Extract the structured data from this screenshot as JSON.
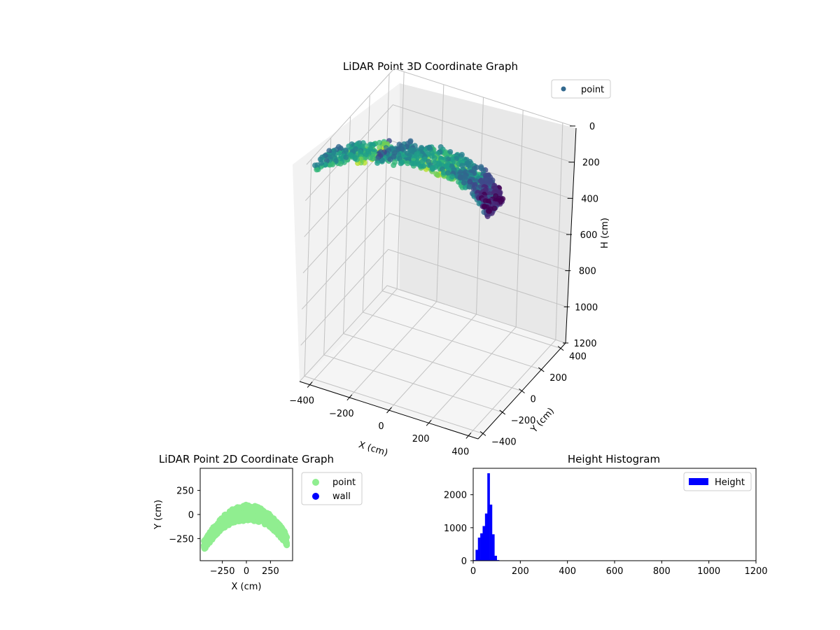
{
  "figure": {
    "colors": {
      "point_3d_legend": "#31688e",
      "point_2d": "#90ee90",
      "wall": "#0000ff",
      "hist": "#0000ff"
    }
  },
  "chart_data": [
    {
      "type": "scatter3d",
      "title": "LiDAR Point 3D Coordinate Graph",
      "xlabel": "X (cm)",
      "ylabel": "Y (cm)",
      "zlabel": "H (cm)",
      "x_ticks": [
        "−400",
        "−200",
        "0",
        "200",
        "400"
      ],
      "y_ticks": [
        "−400",
        "−200",
        "0",
        "200",
        "400"
      ],
      "z_ticks": [
        "0",
        "200",
        "400",
        "600",
        "800",
        "1000",
        "1200"
      ],
      "xlim": [
        -450,
        450
      ],
      "ylim": [
        -450,
        450
      ],
      "zlim": [
        0,
        1200
      ],
      "z_inverted": true,
      "colormap": "viridis",
      "legend": {
        "labels": [
          "point"
        ],
        "position": "top-right"
      },
      "series": [
        {
          "name": "point",
          "description_shape": "arched band of points",
          "x_range": [
            -450,
            450
          ],
          "y_range": [
            -250,
            100
          ],
          "h_range": [
            0,
            200
          ]
        }
      ]
    },
    {
      "type": "scatter",
      "title": "LiDAR Point 2D Coordinate Graph",
      "xlabel": "X (cm)",
      "ylabel": "Y (cm)",
      "x_ticks": [
        "−250",
        "0",
        "250"
      ],
      "y_ticks": [
        "250",
        "0",
        "−250"
      ],
      "xlim": [
        -480,
        480
      ],
      "ylim": [
        -480,
        480
      ],
      "legend": {
        "labels": [
          "point",
          "wall"
        ],
        "position": "outside-right"
      },
      "series": [
        {
          "name": "point",
          "color": "#90ee90",
          "shape": "arch",
          "x_range": [
            -440,
            420
          ],
          "y_outer_top": 100,
          "y_outer_ends": -260,
          "thickness": 170
        },
        {
          "name": "wall",
          "color": "#0000ff",
          "points": []
        }
      ]
    },
    {
      "type": "bar",
      "title": "Height Histogram",
      "xlabel": "",
      "ylabel": "",
      "x_ticks": [
        "0",
        "200",
        "400",
        "600",
        "800",
        "1000",
        "1200"
      ],
      "y_ticks": [
        "0",
        "1000",
        "2000"
      ],
      "xlim": [
        0,
        1200
      ],
      "ylim": [
        0,
        2800
      ],
      "bin_width": 10,
      "legend": {
        "labels": [
          "Height"
        ],
        "position": "top-right"
      },
      "bins": [
        0,
        10,
        20,
        30,
        40,
        50,
        60,
        70,
        80,
        90,
        100,
        110,
        120,
        130
      ],
      "values": [
        20,
        330,
        700,
        830,
        1050,
        1430,
        2650,
        1700,
        800,
        150,
        20,
        5,
        0,
        0
      ]
    }
  ]
}
